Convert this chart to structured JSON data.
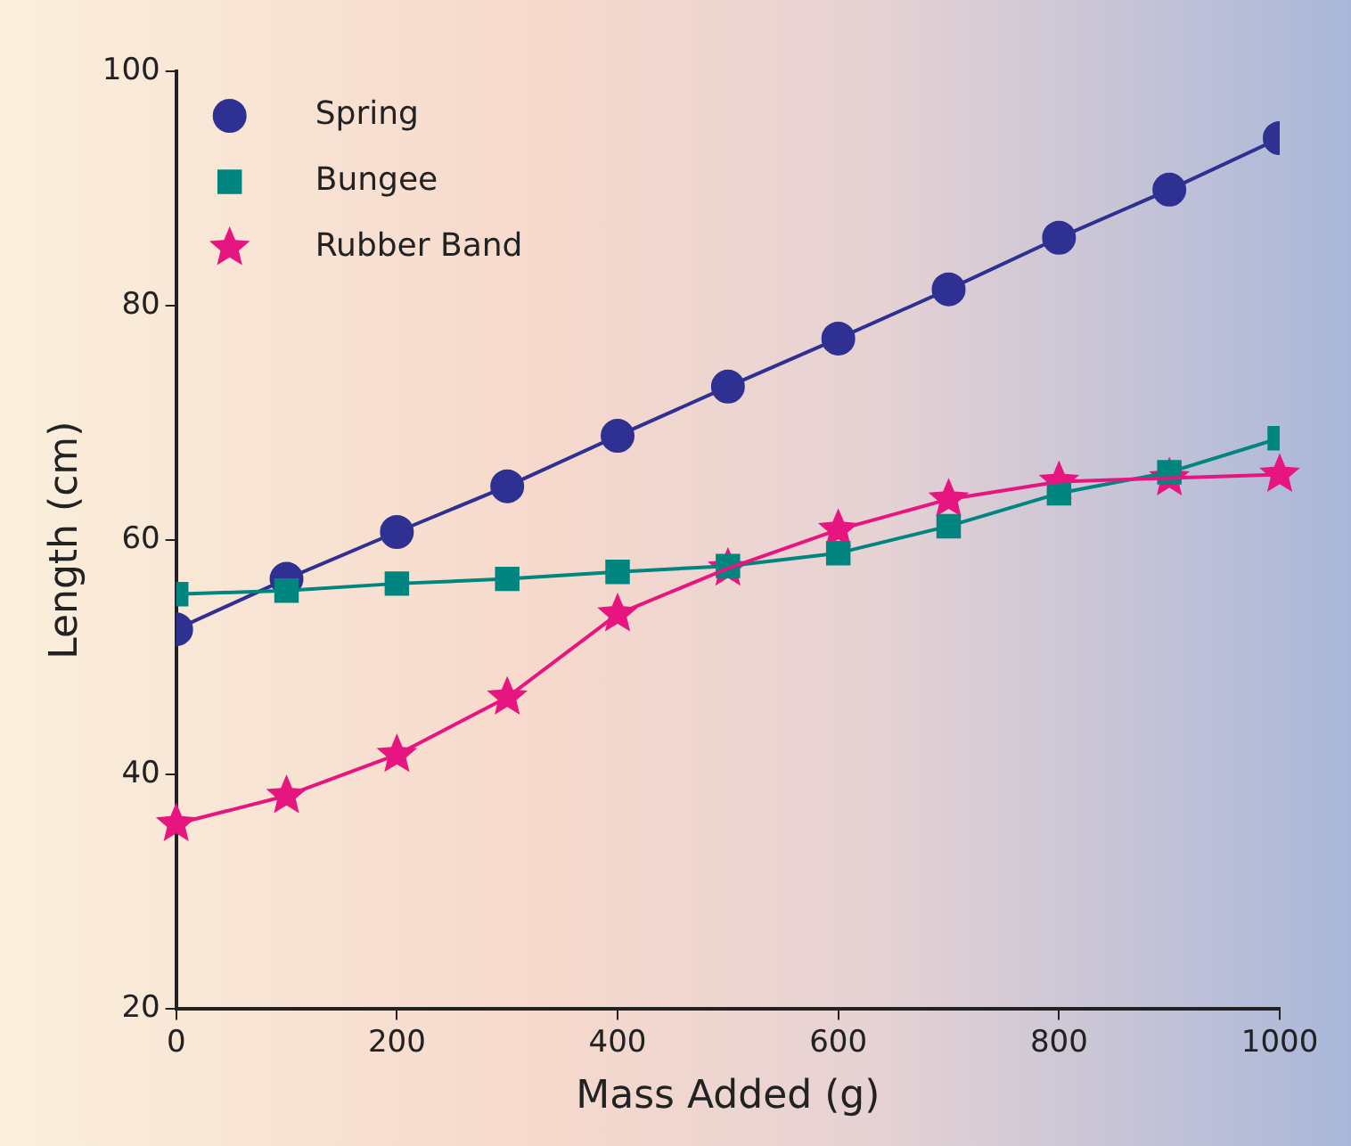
{
  "chart_data": {
    "type": "line",
    "xlabel": "Mass Added (g)",
    "ylabel": "Length (cm)",
    "x": [
      0,
      100,
      200,
      300,
      400,
      500,
      600,
      700,
      800,
      900,
      1000
    ],
    "xlim": [
      0,
      1000
    ],
    "xticks": [
      0,
      200,
      400,
      600,
      800,
      1000
    ],
    "ylim": [
      20,
      100
    ],
    "yticks": [
      20,
      40,
      60,
      80,
      100
    ],
    "grid": false,
    "legend": "top left",
    "line_style": "solid",
    "series": [
      {
        "name": "Spring",
        "color": "#2e3192",
        "marker": "circle",
        "values": [
          52.4,
          56.7,
          60.7,
          64.6,
          68.9,
          73.1,
          77.2,
          81.4,
          85.8,
          89.9,
          94.3
        ]
      },
      {
        "name": "Bungee",
        "color": "#00857f",
        "marker": "square",
        "values": [
          55.4,
          55.7,
          56.3,
          56.7,
          57.3,
          57.8,
          58.9,
          61.2,
          64.0,
          65.8,
          68.7
        ]
      },
      {
        "name": "Rubber Band",
        "color": "#e6157f",
        "marker": "star",
        "values": [
          35.8,
          38.2,
          41.7,
          46.6,
          53.7,
          57.6,
          60.9,
          63.5,
          65.0,
          65.3,
          65.6
        ]
      }
    ]
  }
}
